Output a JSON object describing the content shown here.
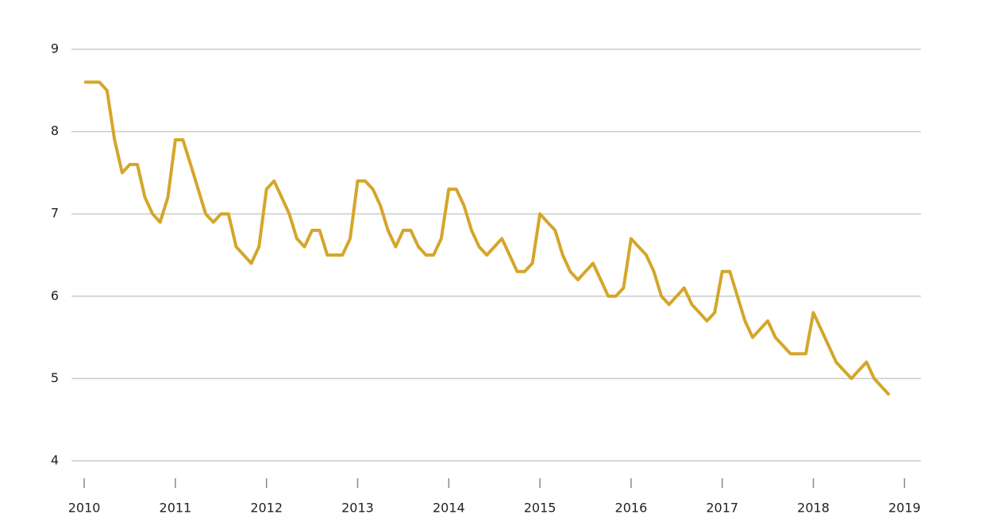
{
  "chart_data": {
    "type": "line",
    "x": [
      2010,
      2010.083,
      2010.167,
      2010.25,
      2010.333,
      2010.417,
      2010.5,
      2010.583,
      2010.667,
      2010.75,
      2010.833,
      2010.917,
      2011,
      2011.083,
      2011.167,
      2011.25,
      2011.333,
      2011.417,
      2011.5,
      2011.583,
      2011.667,
      2011.75,
      2011.833,
      2011.917,
      2012,
      2012.083,
      2012.167,
      2012.25,
      2012.333,
      2012.417,
      2012.5,
      2012.583,
      2012.667,
      2012.75,
      2012.833,
      2012.917,
      2013,
      2013.083,
      2013.167,
      2013.25,
      2013.333,
      2013.417,
      2013.5,
      2013.583,
      2013.667,
      2013.75,
      2013.833,
      2013.917,
      2014,
      2014.083,
      2014.167,
      2014.25,
      2014.333,
      2014.417,
      2014.5,
      2014.583,
      2014.667,
      2014.75,
      2014.833,
      2014.917,
      2015,
      2015.083,
      2015.167,
      2015.25,
      2015.333,
      2015.417,
      2015.5,
      2015.583,
      2015.667,
      2015.75,
      2015.833,
      2015.917,
      2016,
      2016.083,
      2016.167,
      2016.25,
      2016.333,
      2016.417,
      2016.5,
      2016.583,
      2016.667,
      2016.75,
      2016.833,
      2016.917,
      2017,
      2017.083,
      2017.167,
      2017.25,
      2017.333,
      2017.417,
      2017.5,
      2017.583,
      2017.667,
      2017.75,
      2017.833,
      2017.917,
      2018,
      2018.083,
      2018.167,
      2018.25,
      2018.333,
      2018.417,
      2018.5,
      2018.583,
      2018.667,
      2018.75,
      2018.833
    ],
    "series": [
      {
        "color": "#d4a62a",
        "values": [
          8.6,
          8.6,
          8.6,
          8.5,
          7.9,
          7.5,
          7.6,
          7.6,
          7.2,
          7.0,
          6.9,
          7.2,
          7.9,
          7.9,
          7.6,
          7.3,
          7.0,
          6.9,
          7.0,
          7.0,
          6.6,
          6.5,
          6.4,
          6.6,
          7.3,
          7.4,
          7.2,
          7.0,
          6.7,
          6.6,
          6.8,
          6.8,
          6.5,
          6.5,
          6.5,
          6.7,
          7.4,
          7.4,
          7.3,
          7.1,
          6.8,
          6.6,
          6.8,
          6.8,
          6.6,
          6.5,
          6.5,
          6.7,
          7.3,
          7.3,
          7.1,
          6.8,
          6.6,
          6.5,
          6.6,
          6.7,
          6.5,
          6.3,
          6.3,
          6.4,
          7.0,
          6.9,
          6.8,
          6.5,
          6.3,
          6.2,
          6.3,
          6.4,
          6.2,
          6.0,
          6.0,
          6.1,
          6.7,
          6.6,
          6.5,
          6.3,
          6.0,
          5.9,
          6.0,
          6.1,
          5.9,
          5.8,
          5.7,
          5.8,
          6.3,
          6.3,
          6.0,
          5.7,
          5.5,
          5.6,
          5.7,
          5.5,
          5.4,
          5.3,
          5.3,
          5.3,
          5.8,
          5.6,
          5.4,
          5.2,
          5.1,
          5.0,
          5.1,
          5.2,
          5.0,
          4.9,
          4.8
        ]
      }
    ],
    "xlim": [
      2009.86,
      2019.18
    ],
    "xticks": [
      2010,
      2011,
      2012,
      2013,
      2014,
      2015,
      2016,
      2017,
      2018,
      2019
    ],
    "ylim": [
      4,
      9
    ],
    "yticks": [
      4,
      5,
      6,
      7,
      8,
      9
    ],
    "grid": true
  }
}
